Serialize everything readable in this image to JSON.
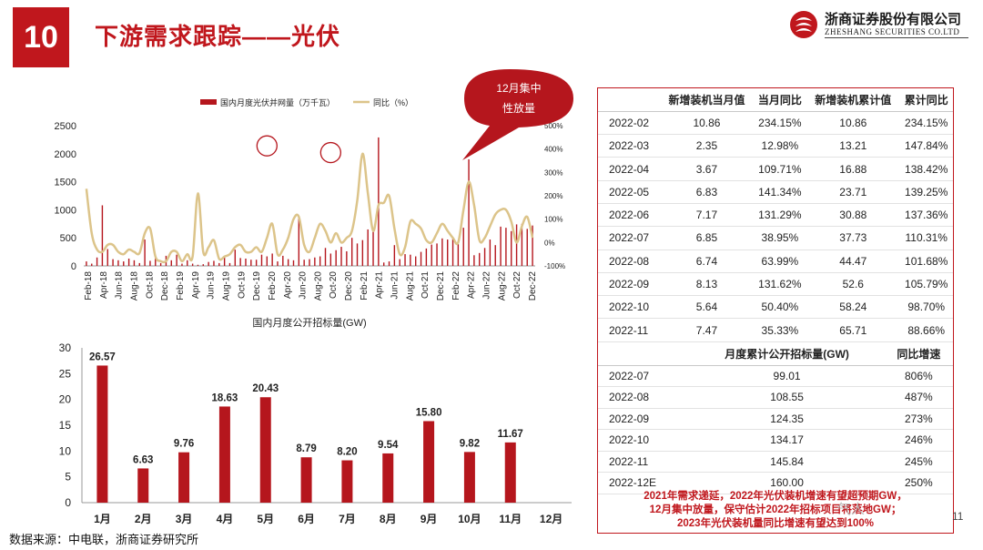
{
  "header": {
    "number": "10",
    "title": "下游需求跟踪——光伏"
  },
  "logo": {
    "cn": "浙商证券股份有限公司",
    "en": "ZHESHANG SECURITIES CO.LTD"
  },
  "callout": {
    "line1": "12月集中",
    "line2": "性放量"
  },
  "chart_data": [
    {
      "type": "bar+line",
      "legend": [
        "国内月度光伏并网量（万千瓦）",
        "同比（%）"
      ],
      "x_tick_labels": [
        "Feb-18",
        "Apr-18",
        "Jun-18",
        "Aug-18",
        "Oct-18",
        "Dec-18",
        "Feb-19",
        "Apr-19",
        "Jun-19",
        "Aug-19",
        "Oct-19",
        "Dec-19",
        "Feb-20",
        "Apr-20",
        "Jun-20",
        "Aug-20",
        "Oct-20",
        "Dec-20",
        "Feb-21",
        "Apr-21",
        "Jun-21",
        "Aug-21",
        "Oct-21",
        "Dec-21",
        "Feb-22",
        "Apr-22",
        "Jun-22",
        "Aug-22",
        "Oct-22",
        "Dec-22"
      ],
      "y_left_ticks": [
        "0",
        "500",
        "1000",
        "1500",
        "2000",
        "2500"
      ],
      "y_left_range": [
        0,
        2500
      ],
      "y_right_ticks": [
        "-100%",
        "0%",
        "100%",
        "200%",
        "300%",
        "400%",
        "500%"
      ],
      "y_right_range": [
        -100,
        500
      ],
      "series": [
        {
          "name": "国内月度光伏并网量（万千瓦）",
          "values": [
            80,
            40,
            150,
            1080,
            300,
            120,
            100,
            80,
            130,
            100,
            50,
            470,
            90,
            140,
            50,
            180,
            100,
            200,
            40,
            100,
            40,
            20,
            30,
            70,
            90,
            50,
            150,
            50,
            290,
            140,
            130,
            110,
            110,
            200,
            170,
            220,
            80,
            180,
            120,
            100,
            890,
            110,
            120,
            150,
            170,
            320,
            220,
            280,
            340,
            260,
            500,
            400,
            460,
            650,
            610,
            2290,
            60,
            80,
            370,
            120,
            210,
            200,
            170,
            250,
            310,
            380,
            400,
            490,
            470,
            500,
            390,
            680,
            1900,
            190,
            230,
            320,
            470,
            370,
            700,
            680,
            620,
            740,
            750,
            660,
            720
          ]
        },
        {
          "name": "同比（%）",
          "values": [
            230,
            40,
            -30,
            -40,
            -10,
            -10,
            -40,
            -50,
            -30,
            -40,
            -45,
            40,
            60,
            -60,
            -80,
            -80,
            -40,
            -40,
            -80,
            -50,
            -60,
            210,
            -40,
            -20,
            10,
            -70,
            -60,
            -50,
            -20,
            -10,
            -40,
            -40,
            -20,
            -40,
            20,
            80,
            -50,
            -30,
            20,
            100,
            110,
            -10,
            -40,
            20,
            80,
            50,
            0,
            40,
            0,
            20,
            50,
            180,
            380,
            210,
            50,
            160,
            170,
            200,
            60,
            -50,
            -20,
            90,
            80,
            60,
            10,
            0,
            40,
            80,
            50,
            20,
            0,
            140,
            260,
            160,
            10,
            20,
            70,
            120,
            140,
            140,
            90,
            0,
            70,
            110,
            20
          ]
        }
      ]
    },
    {
      "type": "bar",
      "title": "国内月度公开招标量(GW)",
      "categories": [
        "1月",
        "2月",
        "3月",
        "4月",
        "5月",
        "6月",
        "7月",
        "8月",
        "9月",
        "10月",
        "11月",
        "12月"
      ],
      "values": [
        26.57,
        6.63,
        9.76,
        18.63,
        20.43,
        8.79,
        8.2,
        9.54,
        15.8,
        9.82,
        11.67,
        null
      ],
      "value_labels": [
        "26.57",
        "6.63",
        "9.76",
        "18.63",
        "20.43",
        "8.79",
        "8.20",
        "9.54",
        "15.80",
        "9.82",
        "11.67",
        ""
      ],
      "ylim": [
        0,
        30
      ],
      "y_ticks": [
        "0",
        "5",
        "10",
        "15",
        "20",
        "25",
        "30"
      ]
    }
  ],
  "table1": {
    "headers": [
      "",
      "新增装机当月值",
      "当月同比",
      "新增装机累计值",
      "累计同比"
    ],
    "rows": [
      [
        "2022-02",
        "10.86",
        "234.15%",
        "10.86",
        "234.15%"
      ],
      [
        "2022-03",
        "2.35",
        "12.98%",
        "13.21",
        "147.84%"
      ],
      [
        "2022-04",
        "3.67",
        "109.71%",
        "16.88",
        "138.42%"
      ],
      [
        "2022-05",
        "6.83",
        "141.34%",
        "23.71",
        "139.25%"
      ],
      [
        "2022-06",
        "7.17",
        "131.29%",
        "30.88",
        "137.36%"
      ],
      [
        "2022-07",
        "6.85",
        "38.95%",
        "37.73",
        "110.31%"
      ],
      [
        "2022-08",
        "6.74",
        "63.99%",
        "44.47",
        "101.68%"
      ],
      [
        "2022-09",
        "8.13",
        "131.62%",
        "52.6",
        "105.79%"
      ],
      [
        "2022-10",
        "5.64",
        "50.40%",
        "58.24",
        "98.70%"
      ],
      [
        "2022-11",
        "7.47",
        "35.33%",
        "65.71",
        "88.66%"
      ]
    ]
  },
  "table2": {
    "headers": [
      "",
      "月度累计公开招标量(GW)",
      "同比增速"
    ],
    "rows": [
      [
        "2022-07",
        "99.01",
        "806%"
      ],
      [
        "2022-08",
        "108.55",
        "487%"
      ],
      [
        "2022-09",
        "124.35",
        "273%"
      ],
      [
        "2022-10",
        "134.17",
        "246%"
      ],
      [
        "2022-11",
        "145.84",
        "245%"
      ],
      [
        "2022-12E",
        "160.00",
        "250%"
      ]
    ]
  },
  "footnote": {
    "line1": "2021年需求递延，2022年光伏装机增速有望超预期GW，",
    "line2": "12月集中放量，保守估计2022年招标项目将落地GW；",
    "line3": "2023年光伏装机量同比增速有望达到100%"
  },
  "source": "数据来源：中电联，浙商证券研究所",
  "page_number": "11",
  "watermark": "气人",
  "colors": {
    "brand_red": "#c0171d",
    "bar_red": "#b5161d",
    "line_gold": "#dcc48a"
  }
}
